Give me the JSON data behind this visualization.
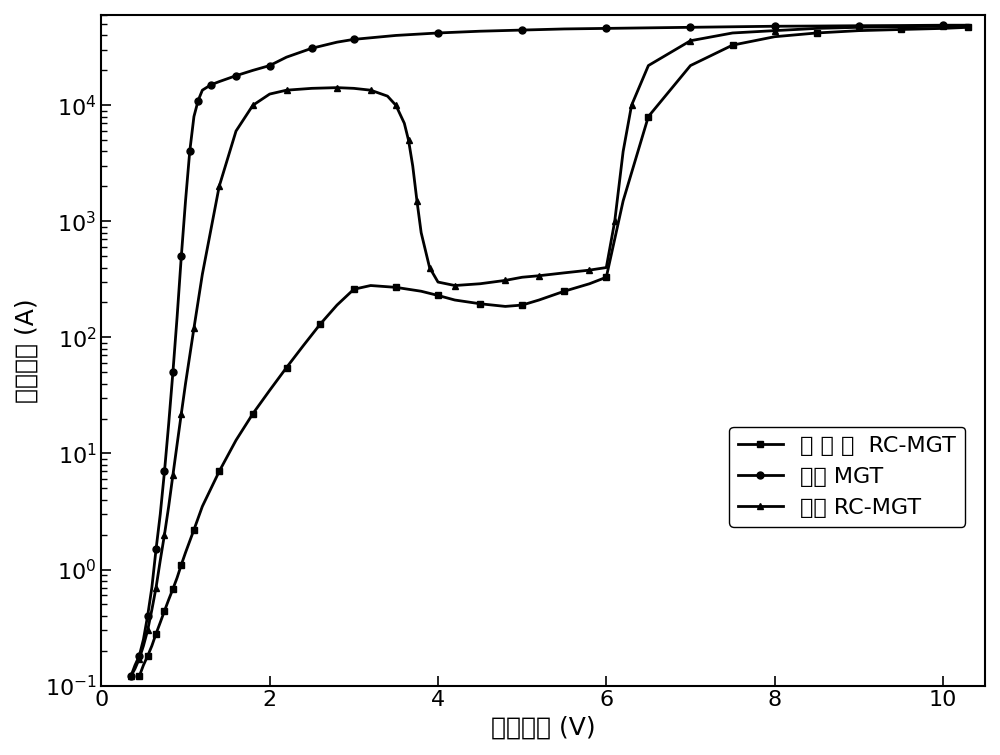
{
  "title": "",
  "xlabel": "阳极电压 (V)",
  "ylabel": "阳极电流 (A)",
  "xlim": [
    0,
    10.5
  ],
  "ylim_log": [
    0.1,
    60000
  ],
  "xticks": [
    0,
    2,
    4,
    6,
    8,
    10
  ],
  "legend_labels": [
    "本 发 明  RC-MGT",
    "常规 MGT",
    "常规 RC-MGT"
  ],
  "background_color": "#ffffff",
  "line_color": "#000000",
  "series1_x": [
    0.45,
    0.5,
    0.55,
    0.6,
    0.65,
    0.7,
    0.75,
    0.8,
    0.85,
    0.9,
    0.95,
    1.0,
    1.1,
    1.2,
    1.4,
    1.6,
    1.8,
    2.0,
    2.2,
    2.4,
    2.6,
    2.8,
    3.0,
    3.2,
    3.5,
    3.8,
    4.0,
    4.2,
    4.5,
    4.8,
    5.0,
    5.2,
    5.5,
    5.8,
    6.0,
    6.2,
    6.5,
    7.0,
    7.5,
    8.0,
    8.5,
    9.0,
    9.5,
    10.0,
    10.3
  ],
  "series1_y": [
    0.12,
    0.15,
    0.18,
    0.22,
    0.28,
    0.35,
    0.44,
    0.55,
    0.68,
    0.85,
    1.1,
    1.4,
    2.2,
    3.5,
    7.0,
    13.0,
    22.0,
    35.0,
    55.0,
    85.0,
    130.0,
    190.0,
    260.0,
    280.0,
    270.0,
    250.0,
    230.0,
    210.0,
    195.0,
    185.0,
    190.0,
    210.0,
    250.0,
    290.0,
    330.0,
    1500.0,
    8000.0,
    22000.0,
    33000.0,
    39000.0,
    42000.0,
    44000.0,
    45000.0,
    46000.0,
    47000.0
  ],
  "series2_x": [
    0.35,
    0.4,
    0.45,
    0.5,
    0.55,
    0.6,
    0.65,
    0.7,
    0.75,
    0.8,
    0.85,
    0.9,
    0.95,
    1.0,
    1.05,
    1.1,
    1.15,
    1.2,
    1.3,
    1.4,
    1.6,
    1.8,
    2.0,
    2.2,
    2.5,
    2.8,
    3.0,
    3.5,
    4.0,
    4.5,
    5.0,
    5.5,
    6.0,
    6.5,
    7.0,
    7.5,
    8.0,
    8.5,
    9.0,
    9.5,
    10.0,
    10.3
  ],
  "series2_y": [
    0.12,
    0.15,
    0.18,
    0.25,
    0.4,
    0.7,
    1.5,
    3.0,
    7.0,
    18.0,
    50.0,
    150.0,
    500.0,
    1500.0,
    4000.0,
    8000.0,
    11000.0,
    13500.0,
    15000.0,
    16000.0,
    18000.0,
    20000.0,
    22000.0,
    26000.0,
    31000.0,
    35000.0,
    37000.0,
    40000.0,
    42000.0,
    43500.0,
    44500.0,
    45500.0,
    46000.0,
    46500.0,
    47000.0,
    47500.0,
    48000.0,
    48200.0,
    48500.0,
    48700.0,
    49000.0,
    49000.0
  ],
  "series3_x": [
    0.35,
    0.4,
    0.45,
    0.5,
    0.55,
    0.6,
    0.65,
    0.7,
    0.75,
    0.8,
    0.85,
    0.9,
    0.95,
    1.0,
    1.1,
    1.2,
    1.4,
    1.6,
    1.8,
    2.0,
    2.2,
    2.5,
    2.8,
    3.0,
    3.2,
    3.4,
    3.5,
    3.6,
    3.65,
    3.7,
    3.75,
    3.8,
    3.9,
    4.0,
    4.2,
    4.5,
    4.8,
    5.0,
    5.2,
    5.5,
    5.8,
    6.0,
    6.1,
    6.2,
    6.3,
    6.5,
    7.0,
    7.5,
    8.0,
    8.5,
    9.0,
    9.5,
    10.0,
    10.3
  ],
  "series3_y": [
    0.12,
    0.14,
    0.17,
    0.22,
    0.3,
    0.45,
    0.7,
    1.2,
    2.0,
    3.5,
    6.5,
    12.0,
    22.0,
    40.0,
    120.0,
    350.0,
    2000.0,
    6000.0,
    10000.0,
    12500.0,
    13500.0,
    14000.0,
    14200.0,
    14000.0,
    13500.0,
    12000.0,
    10000.0,
    7000.0,
    5000.0,
    3000.0,
    1500.0,
    800.0,
    400.0,
    300.0,
    280.0,
    290.0,
    310.0,
    330.0,
    340.0,
    360.0,
    380.0,
    400.0,
    1000.0,
    4000.0,
    10000.0,
    22000.0,
    36000.0,
    42000.0,
    44000.0,
    46000.0,
    47000.0,
    47500.0,
    48000.0,
    48500.0
  ],
  "marker_size": 5,
  "linewidth": 2.0,
  "font_size_label": 18,
  "font_size_tick": 16,
  "font_size_legend": 16
}
